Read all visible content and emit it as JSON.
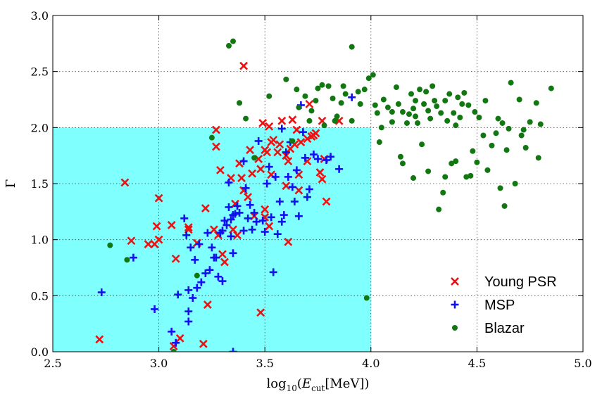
{
  "chart_data": {
    "type": "scatter",
    "title": "",
    "xlabel": "log10(Ecut[MeV])",
    "xlabel_main": "log",
    "xlabel_sub": "10",
    "xlabel_paren_open": "(",
    "xlabel_E": "E",
    "xlabel_E_sub": "cut",
    "xlabel_unit": "[MeV])",
    "ylabel": "Γ",
    "xlim": [
      2.5,
      5.0
    ],
    "ylim": [
      0.0,
      3.0
    ],
    "xticks": [
      "2.5",
      "3.0",
      "3.5",
      "4.0",
      "4.5",
      "5.0"
    ],
    "xtick_values": [
      2.5,
      3.0,
      3.5,
      4.0,
      4.5,
      5.0
    ],
    "yticks": [
      "0.0",
      "0.5",
      "1.0",
      "1.5",
      "2.0",
      "2.5",
      "3.0"
    ],
    "ytick_values": [
      0.0,
      0.5,
      1.0,
      1.5,
      2.0,
      2.5,
      3.0
    ],
    "grid": true,
    "shaded_region": {
      "x": [
        2.5,
        4.0
      ],
      "y": [
        0.0,
        2.0
      ],
      "color": "#80ffff"
    },
    "legend_position": "lower-right",
    "series": [
      {
        "name": "Young PSR",
        "marker": "x",
        "color": "#ee1111",
        "points": [
          [
            2.72,
            0.11
          ],
          [
            2.84,
            1.51
          ],
          [
            2.87,
            0.99
          ],
          [
            2.95,
            0.96
          ],
          [
            2.98,
            0.96
          ],
          [
            2.99,
            1.12
          ],
          [
            3.0,
            1.37
          ],
          [
            3.0,
            1.0
          ],
          [
            3.06,
            1.13
          ],
          [
            3.07,
            0.05
          ],
          [
            3.08,
            0.83
          ],
          [
            3.1,
            0.12
          ],
          [
            3.14,
            1.11
          ],
          [
            3.14,
            1.09
          ],
          [
            3.18,
            0.97
          ],
          [
            3.21,
            0.07
          ],
          [
            3.22,
            1.28
          ],
          [
            3.23,
            0.42
          ],
          [
            3.26,
            1.09
          ],
          [
            3.27,
            1.83
          ],
          [
            3.27,
            1.98
          ],
          [
            3.28,
            1.04
          ],
          [
            3.29,
            1.62
          ],
          [
            3.3,
            0.87
          ],
          [
            3.31,
            0.8
          ],
          [
            3.34,
            1.55
          ],
          [
            3.35,
            1.09
          ],
          [
            3.37,
            1.04
          ],
          [
            3.36,
            1.32
          ],
          [
            3.38,
            1.68
          ],
          [
            3.39,
            1.55
          ],
          [
            3.4,
            2.55
          ],
          [
            3.4,
            1.44
          ],
          [
            3.42,
            1.38
          ],
          [
            3.43,
            1.8
          ],
          [
            3.44,
            1.59
          ],
          [
            3.45,
            1.21
          ],
          [
            3.47,
            1.72
          ],
          [
            3.48,
            1.63
          ],
          [
            3.48,
            0.35
          ],
          [
            3.49,
            2.04
          ],
          [
            3.5,
            1.8
          ],
          [
            3.5,
            1.2
          ],
          [
            3.5,
            1.27
          ],
          [
            3.51,
            1.78
          ],
          [
            3.52,
            2.01
          ],
          [
            3.52,
            1.12
          ],
          [
            3.53,
            1.87
          ],
          [
            3.53,
            1.58
          ],
          [
            3.54,
            1.89
          ],
          [
            3.56,
            1.78
          ],
          [
            3.57,
            1.85
          ],
          [
            3.58,
            2.06
          ],
          [
            3.6,
            1.75
          ],
          [
            3.6,
            1.48
          ],
          [
            3.61,
            1.7
          ],
          [
            3.61,
            0.98
          ],
          [
            3.62,
            1.81
          ],
          [
            3.63,
            2.07
          ],
          [
            3.64,
            1.85
          ],
          [
            3.65,
            1.98
          ],
          [
            3.66,
            1.58
          ],
          [
            3.66,
            1.44
          ],
          [
            3.67,
            1.87
          ],
          [
            3.7,
            1.9
          ],
          [
            3.7,
            1.7
          ],
          [
            3.71,
            2.21
          ],
          [
            3.72,
            1.92
          ],
          [
            3.73,
            1.93
          ],
          [
            3.74,
            1.95
          ],
          [
            3.76,
            1.6
          ],
          [
            3.77,
            2.06
          ],
          [
            3.77,
            1.54
          ],
          [
            3.78,
            1.72
          ],
          [
            3.79,
            1.34
          ],
          [
            3.85,
            2.06
          ]
        ]
      },
      {
        "name": "MSP",
        "marker": "+",
        "color": "#1111ee",
        "points": [
          [
            2.73,
            0.53
          ],
          [
            2.88,
            0.84
          ],
          [
            2.98,
            0.38
          ],
          [
            3.06,
            0.18
          ],
          [
            3.08,
            0.08
          ],
          [
            3.09,
            0.51
          ],
          [
            3.12,
            1.19
          ],
          [
            3.13,
            1.04
          ],
          [
            3.14,
            0.55
          ],
          [
            3.14,
            0.36
          ],
          [
            3.14,
            0.27
          ],
          [
            3.15,
            0.93
          ],
          [
            3.16,
            0.48
          ],
          [
            3.17,
            0.82
          ],
          [
            3.18,
            0.57
          ],
          [
            3.19,
            0.96
          ],
          [
            3.2,
            0.62
          ],
          [
            3.22,
            0.7
          ],
          [
            3.23,
            1.06
          ],
          [
            3.24,
            0.73
          ],
          [
            3.25,
            0.93
          ],
          [
            3.26,
            0.84
          ],
          [
            3.27,
            0.84
          ],
          [
            3.28,
            0.67
          ],
          [
            3.29,
            1.06
          ],
          [
            3.3,
            0.63
          ],
          [
            3.3,
            1.08
          ],
          [
            3.31,
            1.17
          ],
          [
            3.32,
            1.13
          ],
          [
            3.33,
            1.51
          ],
          [
            3.33,
            1.29
          ],
          [
            3.34,
            1.03
          ],
          [
            3.34,
            1.18
          ],
          [
            3.35,
            1.22
          ],
          [
            3.35,
            0.88
          ],
          [
            3.36,
            1.23
          ],
          [
            3.37,
            1.3
          ],
          [
            3.38,
            1.24
          ],
          [
            3.4,
            1.08
          ],
          [
            3.4,
            1.7
          ],
          [
            3.41,
            1.46
          ],
          [
            3.42,
            1.19
          ],
          [
            3.43,
            1.31
          ],
          [
            3.44,
            1.09
          ],
          [
            3.45,
            1.24
          ],
          [
            3.46,
            1.16
          ],
          [
            3.47,
            1.88
          ],
          [
            3.49,
            1.17
          ],
          [
            3.5,
            1.07
          ],
          [
            3.51,
            1.5
          ],
          [
            3.52,
            1.65
          ],
          [
            3.53,
            1.2
          ],
          [
            3.54,
            0.71
          ],
          [
            3.55,
            1.56
          ],
          [
            3.56,
            1.05
          ],
          [
            3.57,
            1.34
          ],
          [
            3.58,
            1.99
          ],
          [
            3.58,
            1.16
          ],
          [
            3.59,
            1.22
          ],
          [
            3.6,
            1.78
          ],
          [
            3.61,
            1.56
          ],
          [
            3.62,
            1.87
          ],
          [
            3.63,
            1.47
          ],
          [
            3.64,
            1.34
          ],
          [
            3.65,
            1.62
          ],
          [
            3.66,
            1.21
          ],
          [
            3.67,
            2.2
          ],
          [
            3.68,
            1.96
          ],
          [
            3.69,
            1.73
          ],
          [
            3.7,
            1.38
          ],
          [
            3.71,
            1.45
          ],
          [
            3.73,
            1.76
          ],
          [
            3.75,
            1.72
          ],
          [
            3.79,
            1.71
          ],
          [
            3.81,
            1.74
          ],
          [
            3.85,
            1.63
          ],
          [
            3.91,
            2.27
          ],
          [
            3.35,
            0.0
          ]
        ]
      },
      {
        "name": "Blazar",
        "marker": "o",
        "color": "#117711",
        "points": [
          [
            2.77,
            0.95
          ],
          [
            2.85,
            0.82
          ],
          [
            3.07,
            0.0
          ],
          [
            3.18,
            0.68
          ],
          [
            3.25,
            1.91
          ],
          [
            3.33,
            2.73
          ],
          [
            3.35,
            2.77
          ],
          [
            3.38,
            2.22
          ],
          [
            3.41,
            2.08
          ],
          [
            3.45,
            1.73
          ],
          [
            3.52,
            2.28
          ],
          [
            3.6,
            2.43
          ],
          [
            3.63,
            1.88
          ],
          [
            3.65,
            2.34
          ],
          [
            3.66,
            2.18
          ],
          [
            3.69,
            2.28
          ],
          [
            3.71,
            2.06
          ],
          [
            3.72,
            2.15
          ],
          [
            3.74,
            2.24
          ],
          [
            3.75,
            2.35
          ],
          [
            3.77,
            2.38
          ],
          [
            3.78,
            2.02
          ],
          [
            3.8,
            2.37
          ],
          [
            3.82,
            2.26
          ],
          [
            3.83,
            2.06
          ],
          [
            3.84,
            2.1
          ],
          [
            3.86,
            2.22
          ],
          [
            3.87,
            2.37
          ],
          [
            3.88,
            2.3
          ],
          [
            3.91,
            2.72
          ],
          [
            3.91,
            2.06
          ],
          [
            3.94,
            2.32
          ],
          [
            3.95,
            2.21
          ],
          [
            3.97,
            2.34
          ],
          [
            3.98,
            0.48
          ],
          [
            3.99,
            2.44
          ],
          [
            4.01,
            2.47
          ],
          [
            4.02,
            2.2
          ],
          [
            4.03,
            2.13
          ],
          [
            4.04,
            1.87
          ],
          [
            4.06,
            2.25
          ],
          [
            4.08,
            2.18
          ],
          [
            4.1,
            2.14
          ],
          [
            4.1,
            2.05
          ],
          [
            4.12,
            2.36
          ],
          [
            4.13,
            2.21
          ],
          [
            4.14,
            1.74
          ],
          [
            4.15,
            2.14
          ],
          [
            4.15,
            1.68
          ],
          [
            4.17,
            2.04
          ],
          [
            4.18,
            2.12
          ],
          [
            4.19,
            2.3
          ],
          [
            4.2,
            2.17
          ],
          [
            4.21,
            2.24
          ],
          [
            4.21,
            2.1
          ],
          [
            4.22,
            2.04
          ],
          [
            4.23,
            2.34
          ],
          [
            4.24,
            1.85
          ],
          [
            4.25,
            2.21
          ],
          [
            4.26,
            2.32
          ],
          [
            4.27,
            2.15
          ],
          [
            4.27,
            1.61
          ],
          [
            4.28,
            2.08
          ],
          [
            4.29,
            2.37
          ],
          [
            4.3,
            2.24
          ],
          [
            4.31,
            2.19
          ],
          [
            4.32,
            1.27
          ],
          [
            4.33,
            2.13
          ],
          [
            4.34,
            1.42
          ],
          [
            4.35,
            2.24
          ],
          [
            4.36,
            2.06
          ],
          [
            4.37,
            2.3
          ],
          [
            4.38,
            1.68
          ],
          [
            4.39,
            2.13
          ],
          [
            4.4,
            1.7
          ],
          [
            4.41,
            2.27
          ],
          [
            4.42,
            2.09
          ],
          [
            4.43,
            2.21
          ],
          [
            4.44,
            2.31
          ],
          [
            4.45,
            1.56
          ],
          [
            4.46,
            2.2
          ],
          [
            4.47,
            1.57
          ],
          [
            4.48,
            1.79
          ],
          [
            4.49,
            2.14
          ],
          [
            4.5,
            1.69
          ],
          [
            4.51,
            2.09
          ],
          [
            4.53,
            1.93
          ],
          [
            4.54,
            2.24
          ],
          [
            4.55,
            1.62
          ],
          [
            4.57,
            1.84
          ],
          [
            4.6,
            2.08
          ],
          [
            4.61,
            1.46
          ],
          [
            4.62,
            2.04
          ],
          [
            4.63,
            1.3
          ],
          [
            4.65,
            1.99
          ],
          [
            4.66,
            2.4
          ],
          [
            4.68,
            1.5
          ],
          [
            4.7,
            2.25
          ],
          [
            4.71,
            1.93
          ],
          [
            4.72,
            1.98
          ],
          [
            4.73,
            1.82
          ],
          [
            4.75,
            2.05
          ],
          [
            4.78,
            2.22
          ],
          [
            4.79,
            1.73
          ],
          [
            4.8,
            2.03
          ],
          [
            4.85,
            2.35
          ],
          [
            4.64,
            1.8
          ],
          [
            4.35,
            1.56
          ],
          [
            4.2,
            1.55
          ],
          [
            4.05,
            2.0
          ],
          [
            4.59,
            1.95
          ],
          [
            4.4,
            2.02
          ]
        ]
      }
    ]
  }
}
